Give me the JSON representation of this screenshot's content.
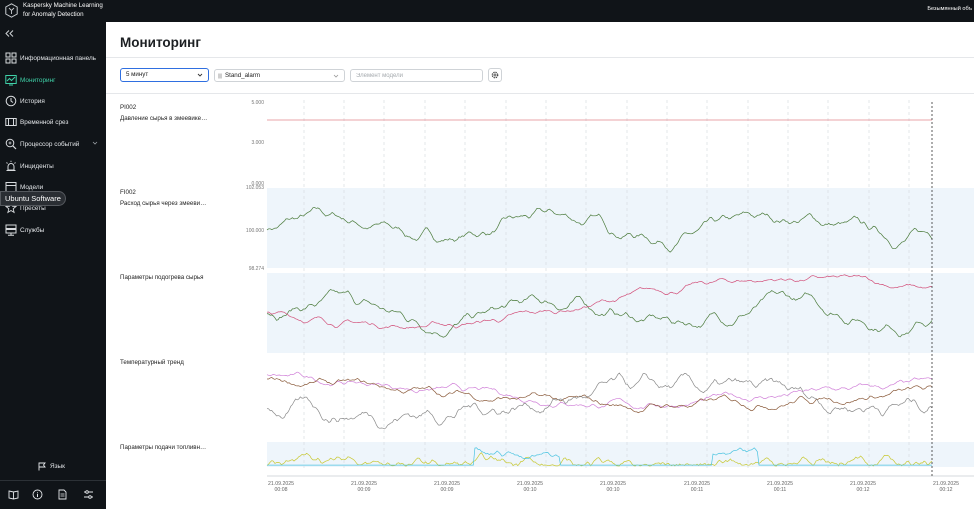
{
  "brand": {
    "line1": "Kaspersky Machine Learning",
    "line2": "for Anomaly Detection"
  },
  "header": {
    "user_name": "Безымянный объ"
  },
  "sidebar": {
    "items": [
      {
        "label": "Информационная панель",
        "icon": "dashboard-icon"
      },
      {
        "label": "Мониторинг",
        "icon": "monitoring-icon",
        "active": true
      },
      {
        "label": "История",
        "icon": "history-icon"
      },
      {
        "label": "Временной срез",
        "icon": "time-slice-icon"
      },
      {
        "label": "Процессор событий",
        "icon": "event-processor-icon",
        "expandable": true
      },
      {
        "label": "Инциденты",
        "icon": "incidents-icon"
      },
      {
        "label": "Модели",
        "icon": "models-icon"
      },
      {
        "label": "Пресеты",
        "icon": "presets-icon"
      },
      {
        "label": "Службы",
        "icon": "services-icon"
      }
    ],
    "tooltip": "Ubuntu Software",
    "language_label": "Язык",
    "bottom_icons": [
      "book-icon",
      "info-icon",
      "document-icon",
      "sliders-icon"
    ]
  },
  "page": {
    "title": "Мониторинг"
  },
  "toolbar": {
    "interval_value": "5 минут",
    "stand_value": "Stand_alarm",
    "element_placeholder": "Элемент модели"
  },
  "panels": [
    {
      "title": "PI002",
      "subtitle": "Давление сырья в змеевике…",
      "y_ticks": [
        "5.000",
        "3.000",
        "0.000"
      ]
    },
    {
      "title": "FI002",
      "subtitle": "Расход сырья через змееви…",
      "y_ticks": [
        "102.053",
        "100.000",
        "98.274"
      ]
    },
    {
      "title": "Параметры подогрева сырья"
    },
    {
      "title": "Температурный тренд"
    },
    {
      "title": "Параметры подачи топливн…"
    }
  ],
  "x_axis_ticks": [
    {
      "date": "21.09.2025",
      "time": "00:08"
    },
    {
      "date": "21.09.2025",
      "time": "00:09"
    },
    {
      "date": "21.09.2025",
      "time": "00:09"
    },
    {
      "date": "21.09.2025",
      "time": "00:10"
    },
    {
      "date": "21.09.2025",
      "time": "00:10"
    },
    {
      "date": "21.09.2025",
      "time": "00:11"
    },
    {
      "date": "21.09.2025",
      "time": "00:11"
    },
    {
      "date": "21.09.2025",
      "time": "00:12"
    },
    {
      "date": "21.09.2025",
      "time": "00:12"
    }
  ],
  "colors": {
    "sidebar_bg": "#101418",
    "accent": "#3fd1a8",
    "band": "#eef5fb",
    "series_green": "#4a7a3a",
    "series_pink": "#d2507a",
    "series_red": "#e0868e",
    "series_gray": "#8a8a8a",
    "series_brown": "#8a5a3a",
    "series_magenta": "#d080d8",
    "series_yellow": "#c8c832",
    "series_cyan": "#4cc4e0"
  }
}
